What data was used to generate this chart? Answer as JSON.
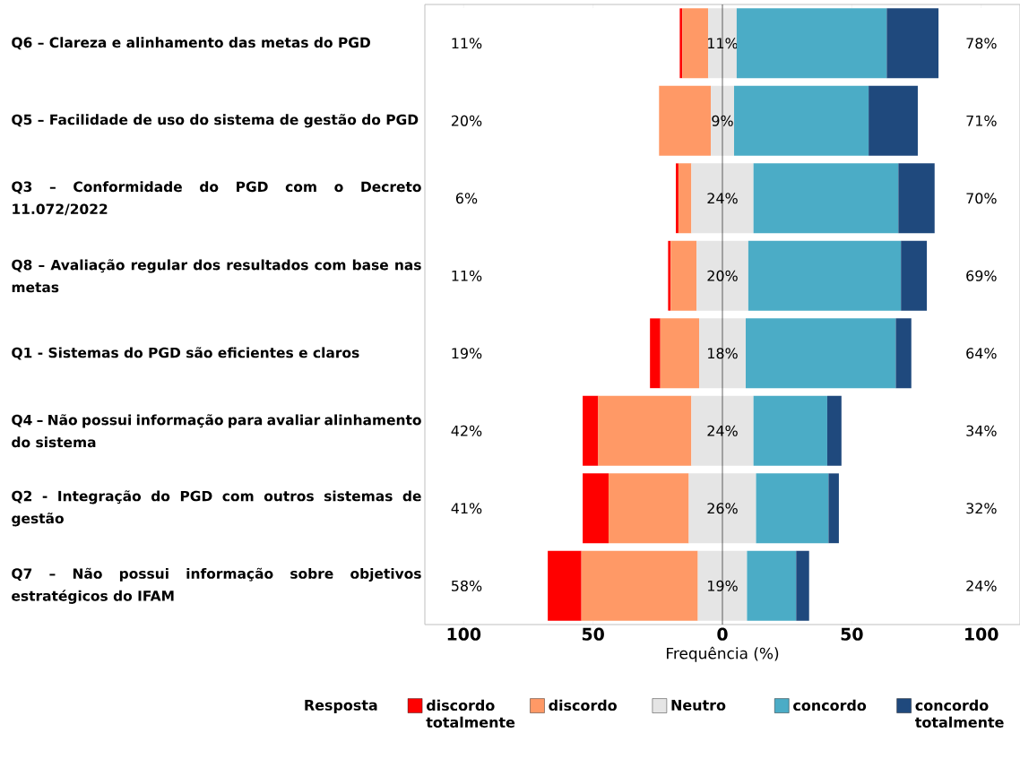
{
  "chart_data": {
    "type": "bar",
    "orientation": "horizontal",
    "categories": [
      "Q6 – Clareza e alinhamento das metas do PGD",
      "Q5 – Facilidade de uso do sistema de gestão do PGD",
      "Q3 – Conformidade do PGD com o Decreto 11.072/2022",
      "Q8 – Avaliação regular dos resultados com base nas metas",
      "Q1 - Sistemas do PGD são eficientes e claros",
      "Q4 – Não possui informação para avaliar alinhamento do sistema",
      "Q2 - Integração do PGD com outros sistemas de gestão",
      "Q7 – Não possui informação sobre objetivos estratégicos do IFAM"
    ],
    "series": [
      {
        "name": "discordo totalmente",
        "color": "#ff0000",
        "base": [
          -16.5,
          null,
          -18,
          -21,
          -28,
          -54,
          -54,
          -67.5
        ],
        "values": [
          1,
          0,
          1,
          1,
          4,
          6,
          10,
          13
        ]
      },
      {
        "name": "discordo",
        "color": "#ff9966",
        "base": [
          -15.5,
          -24.5,
          -17,
          -20,
          -24,
          -48,
          -44,
          -54.5
        ],
        "values": [
          10,
          20,
          5,
          10,
          15,
          36,
          31,
          45
        ]
      },
      {
        "name": "Neutro",
        "color": "#e5e5e5",
        "base": [
          -5.5,
          -4.5,
          -12,
          -10,
          -9,
          -12,
          -13,
          -9.5
        ],
        "values": [
          11,
          9,
          24,
          20,
          18,
          24,
          26,
          19
        ],
        "value_labels": [
          "11%",
          "9%",
          "24%",
          "20%",
          "18%",
          "24%",
          "26%",
          "19%"
        ]
      },
      {
        "name": "concordo",
        "color": "#4bacc6",
        "base": [
          5.5,
          4.5,
          12,
          10,
          9,
          12,
          13,
          9.5
        ],
        "values": [
          58,
          52,
          56,
          59,
          58,
          28.5,
          28,
          19
        ]
      },
      {
        "name": "concordo totalmente",
        "color": "#1f497d",
        "base": [
          63.5,
          56.5,
          68,
          69,
          67,
          40.5,
          41,
          28.5
        ],
        "values": [
          20,
          19,
          14,
          10,
          6,
          5.5,
          4,
          5
        ]
      }
    ],
    "xlim": [
      -115,
      115
    ],
    "xticks": [
      {
        "value": -100,
        "label": "100"
      },
      {
        "value": -50,
        "label": "50"
      },
      0,
      50,
      100
    ],
    "xlabel": "Frequência (%)",
    "legend": "bottom",
    "legend_title": "Resposta",
    "ref_lines": [
      {
        "axis": "x",
        "value": 0,
        "color": "#000000"
      }
    ],
    "annotations": [
      "11%",
      "20%",
      "6%",
      "11%",
      "19%",
      "42%",
      "41%",
      "58%",
      "78%",
      "71%",
      "70%",
      "69%",
      "64%",
      "34%",
      "32%",
      "24%"
    ]
  }
}
